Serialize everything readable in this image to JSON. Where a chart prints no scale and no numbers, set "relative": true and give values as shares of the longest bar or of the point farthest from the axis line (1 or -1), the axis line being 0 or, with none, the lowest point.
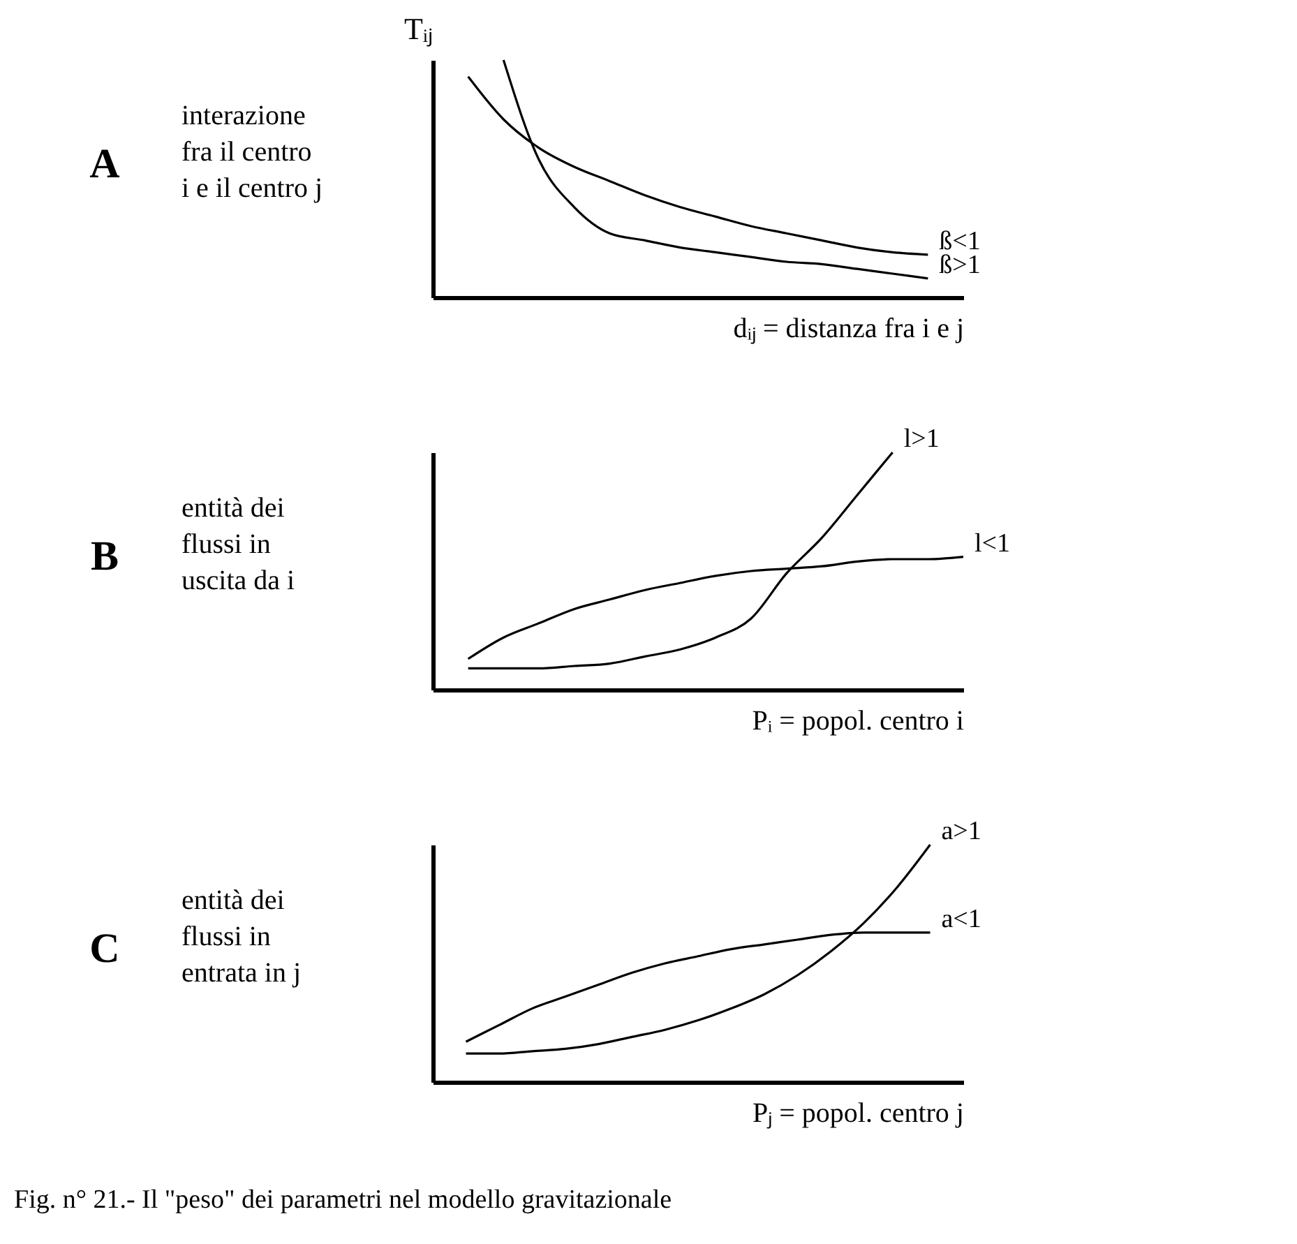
{
  "chart_data": [
    {
      "type": "line",
      "relative": true,
      "grid": false,
      "legend": false,
      "tick_labels": false,
      "ylabel": "Tᵢⱼ",
      "xlabel": "dᵢⱼ = distanza fra i e j",
      "annotations": [
        "A",
        "interazione\nfra il centro\ni e il centro j"
      ],
      "categories": [
        null,
        null,
        null,
        null,
        null,
        null,
        null,
        null,
        null,
        null,
        null,
        null,
        null,
        null,
        null,
        null
      ],
      "series": [
        {
          "name": "ß<1",
          "color": "#000000",
          "values": [
            null,
            0.93,
            0.75,
            0.63,
            0.55,
            0.49,
            0.43,
            0.38,
            0.34,
            0.3,
            0.27,
            0.24,
            0.21,
            0.19,
            0.18,
            null
          ]
        },
        {
          "name": "ß>1",
          "color": "#000000",
          "values": [
            null,
            null,
            1.0,
            0.58,
            0.38,
            0.27,
            0.24,
            0.21,
            0.19,
            0.17,
            0.15,
            0.14,
            0.12,
            0.1,
            0.08,
            null
          ]
        }
      ]
    },
    {
      "type": "line",
      "relative": true,
      "grid": false,
      "legend": false,
      "tick_labels": false,
      "xlabel": "Pᵢ = popol. centro i",
      "annotations": [
        "B",
        "entità dei\nflussi in\nuscita da i"
      ],
      "categories": [
        null,
        null,
        null,
        null,
        null,
        null,
        null,
        null,
        null,
        null,
        null,
        null,
        null,
        null,
        null,
        null
      ],
      "series": [
        {
          "name": "l<1",
          "color": "#000000",
          "values": [
            null,
            0.13,
            0.22,
            0.28,
            0.34,
            0.38,
            0.42,
            0.45,
            0.48,
            0.5,
            0.51,
            0.52,
            0.54,
            0.55,
            0.55,
            0.56
          ]
        },
        {
          "name": "l>1",
          "color": "#000000",
          "values": [
            null,
            0.09,
            0.09,
            0.09,
            0.1,
            0.11,
            0.14,
            0.17,
            0.22,
            0.3,
            0.49,
            0.64,
            0.82,
            1.0,
            null,
            null
          ]
        }
      ]
    },
    {
      "type": "line",
      "relative": true,
      "grid": false,
      "legend": false,
      "tick_labels": false,
      "xlabel": "Pⱼ = popol. centro j",
      "annotations": [
        "C",
        "entità dei\nflussi in\nentrata in j",
        "Fig. n° 21.- Il \"peso\" dei parametri nel modello gravitazionale"
      ],
      "categories": [
        null,
        null,
        null,
        null,
        null,
        null,
        null,
        null,
        null,
        null,
        null,
        null,
        null,
        null,
        null,
        null,
        null
      ],
      "series": [
        {
          "name": "a<1",
          "color": "#000000",
          "values": [
            null,
            0.17,
            0.24,
            0.31,
            0.36,
            0.41,
            0.46,
            0.5,
            0.53,
            0.56,
            0.58,
            0.6,
            0.62,
            0.63,
            0.63,
            0.63,
            null
          ]
        },
        {
          "name": "a>1",
          "color": "#000000",
          "values": [
            null,
            0.12,
            0.12,
            0.13,
            0.14,
            0.16,
            0.19,
            0.22,
            0.26,
            0.31,
            0.37,
            0.45,
            0.55,
            0.67,
            0.82,
            1.0,
            null
          ]
        }
      ]
    }
  ]
}
